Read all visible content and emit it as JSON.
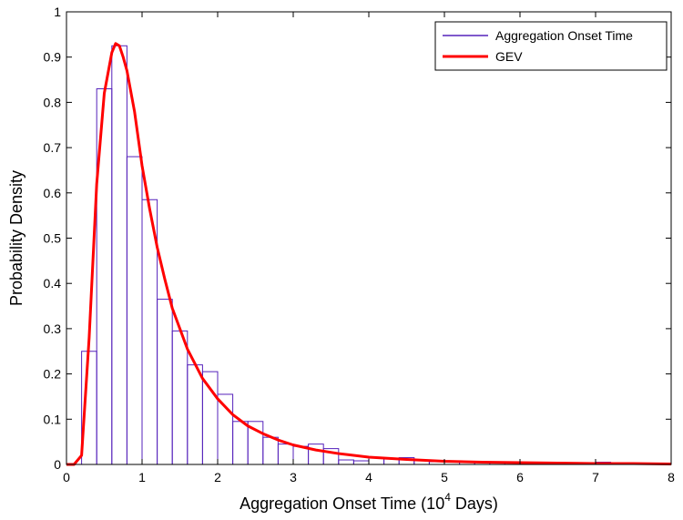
{
  "chart_data": {
    "type": "bar",
    "title": "",
    "xlabel_main": "Aggregation Onset Time (10",
    "xlabel_exp": "4",
    "xlabel_unit": " Days)",
    "ylabel": "Probability Density",
    "xlim": [
      0,
      8
    ],
    "ylim": [
      0,
      1
    ],
    "xticks": [
      "0",
      "1",
      "2",
      "3",
      "4",
      "5",
      "6",
      "7",
      "8"
    ],
    "yticks": [
      "0",
      "0.1",
      "0.2",
      "0.3",
      "0.4",
      "0.5",
      "0.6",
      "0.7",
      "0.8",
      "0.9",
      "1"
    ],
    "legend_position": "top-right",
    "grid": false,
    "histogram": {
      "name": "Aggregation Onset Time",
      "color": "#5522bb",
      "bin_width": 0.2,
      "bin_start": 0.2,
      "values": [
        0.25,
        0.83,
        0.925,
        0.68,
        0.585,
        0.365,
        0.295,
        0.22,
        0.205,
        0.155,
        0.095,
        0.095,
        0.06,
        0.045,
        0.04,
        0.045,
        0.035,
        0.01,
        0.008,
        0.015,
        0.012,
        0.015,
        0.01,
        0.006,
        0.005,
        0.005,
        0.005,
        0.004,
        0.004,
        0.003,
        0.003,
        0.003,
        0.002,
        0.003,
        0.005,
        0.002,
        0.002,
        0.002,
        0.002
      ]
    },
    "curve": {
      "name": "GEV",
      "color": "#ff0000",
      "x": [
        0,
        0.1,
        0.2,
        0.3,
        0.4,
        0.5,
        0.6,
        0.65,
        0.7,
        0.75,
        0.8,
        0.9,
        1.0,
        1.1,
        1.2,
        1.3,
        1.4,
        1.6,
        1.8,
        2.0,
        2.2,
        2.4,
        2.6,
        2.8,
        3.0,
        3.3,
        3.6,
        4.0,
        4.5,
        5.0,
        5.5,
        6.0,
        6.5,
        7.0,
        7.5,
        8.0
      ],
      "y": [
        0,
        0,
        0.02,
        0.28,
        0.62,
        0.82,
        0.91,
        0.93,
        0.925,
        0.9,
        0.87,
        0.78,
        0.66,
        0.565,
        0.48,
        0.41,
        0.345,
        0.255,
        0.19,
        0.145,
        0.11,
        0.085,
        0.068,
        0.054,
        0.043,
        0.032,
        0.024,
        0.016,
        0.011,
        0.007,
        0.005,
        0.004,
        0.003,
        0.002,
        0.002,
        0.001
      ]
    }
  }
}
